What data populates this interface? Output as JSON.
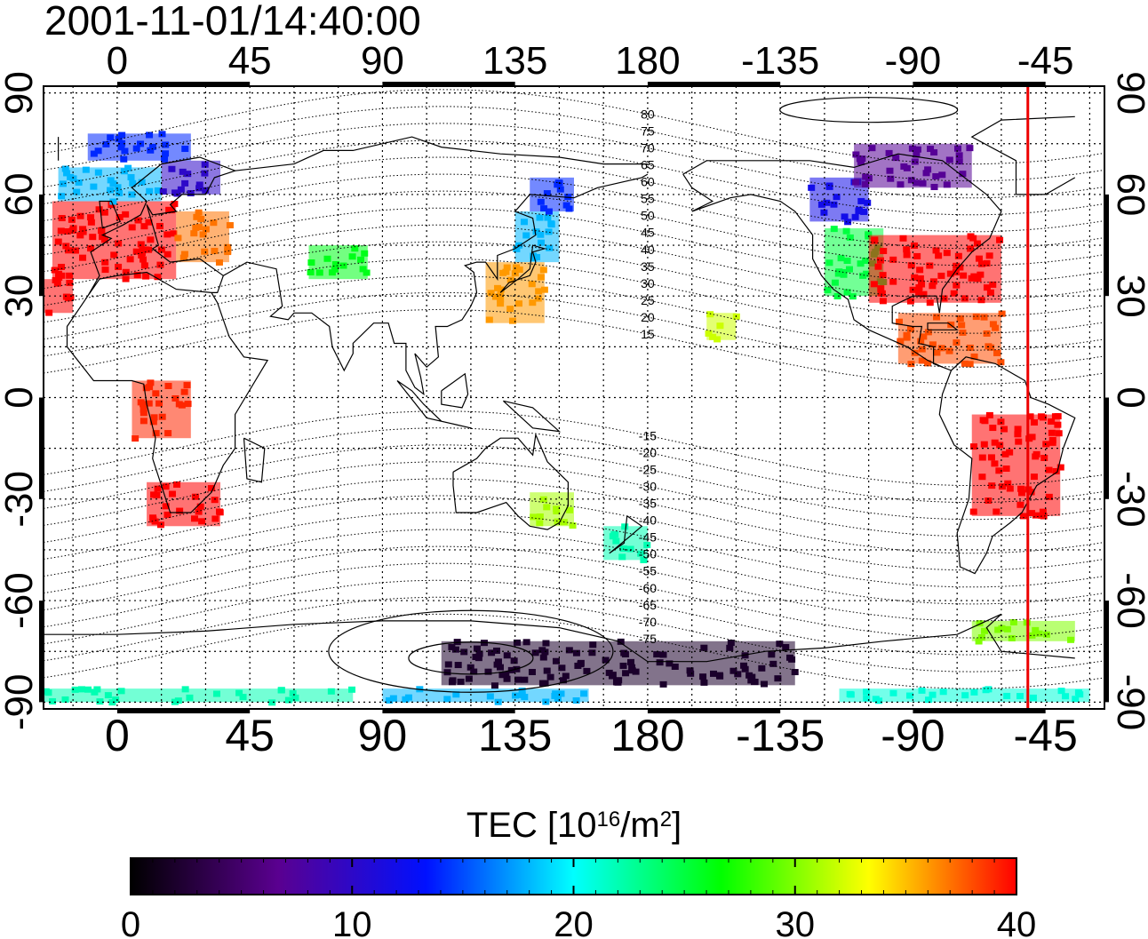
{
  "title": "2001-11-01/14:40:00",
  "map": {
    "lon_axis_ticks": [
      "0",
      "45",
      "90",
      "135",
      "180",
      "-135",
      "-90",
      "-45"
    ],
    "lat_axis_ticks": [
      "90",
      "60",
      "30",
      "0",
      "-30",
      "-60",
      "-90"
    ],
    "lon_tick_values": [
      0,
      45,
      90,
      135,
      180,
      225,
      270,
      315
    ],
    "lat_tick_values": [
      90,
      60,
      30,
      0,
      -30,
      -60,
      -90
    ],
    "lon_range": [
      -25,
      335
    ],
    "lat_range": [
      -92,
      92
    ],
    "projection": "cylindrical equidistant",
    "grid": true,
    "graticule_step_deg": 15,
    "terminator_longitude": 309,
    "terminator_color": "#ee0000",
    "magnetic_latitude_labels_north": [
      "80",
      "75",
      "70",
      "65",
      "60",
      "55",
      "50",
      "45",
      "40",
      "35",
      "30",
      "25",
      "20",
      "15"
    ],
    "magnetic_latitude_labels_south": [
      "-15",
      "-20",
      "-25",
      "-30",
      "-35",
      "-40",
      "-45",
      "-50",
      "-55",
      "-60",
      "-65",
      "-70",
      "-75"
    ]
  },
  "colorbar": {
    "label_prefix": "TEC  [10",
    "label_exp1": "16",
    "label_mid": "/m",
    "label_exp2": "2",
    "label_suffix": "]",
    "ticks": [
      "0",
      "10",
      "20",
      "30",
      "40"
    ],
    "range": [
      0,
      40
    ],
    "colors": [
      "#000000",
      "#5a0090",
      "#0010ff",
      "#00ffff",
      "#00ff00",
      "#ffff00",
      "#ff0000"
    ]
  },
  "chart_data": {
    "type": "heatmap",
    "variable": "TEC",
    "units": "10^16/m^2",
    "cells": [
      {
        "lon_range": [
          -22,
          20
        ],
        "lat_range": [
          35,
          58
        ],
        "tec": 40
      },
      {
        "lon_range": [
          20,
          38
        ],
        "lat_range": [
          40,
          55
        ],
        "tec": 37
      },
      {
        "lon_range": [
          -20,
          15
        ],
        "lat_range": [
          58,
          68
        ],
        "tec": 18
      },
      {
        "lon_range": [
          15,
          35
        ],
        "lat_range": [
          60,
          70
        ],
        "tec": 10
      },
      {
        "lon_range": [
          -10,
          25
        ],
        "lat_range": [
          70,
          78
        ],
        "tec": 14
      },
      {
        "lon_range": [
          -25,
          -15
        ],
        "lat_range": [
          25,
          35
        ],
        "tec": 40
      },
      {
        "lon_range": [
          65,
          85
        ],
        "lat_range": [
          35,
          45
        ],
        "tec": 26
      },
      {
        "lon_range": [
          125,
          145
        ],
        "lat_range": [
          22,
          40
        ],
        "tec": 36
      },
      {
        "lon_range": [
          135,
          150
        ],
        "lat_range": [
          40,
          55
        ],
        "tec": 18
      },
      {
        "lon_range": [
          140,
          155
        ],
        "lat_range": [
          55,
          65
        ],
        "tec": 14
      },
      {
        "lon_range": [
          240,
          260
        ],
        "lat_range": [
          30,
          50
        ],
        "tec": 25
      },
      {
        "lon_range": [
          255,
          300
        ],
        "lat_range": [
          28,
          48
        ],
        "tec": 40
      },
      {
        "lon_range": [
          235,
          255
        ],
        "lat_range": [
          52,
          65
        ],
        "tec": 12
      },
      {
        "lon_range": [
          250,
          290
        ],
        "lat_range": [
          62,
          75
        ],
        "tec": 7
      },
      {
        "lon_range": [
          265,
          300
        ],
        "lat_range": [
          10,
          25
        ],
        "tec": 38
      },
      {
        "lon_range": [
          290,
          320
        ],
        "lat_range": [
          -35,
          -5
        ],
        "tec": 40
      },
      {
        "lon_range": [
          10,
          35
        ],
        "lat_range": [
          -38,
          -25
        ],
        "tec": 40
      },
      {
        "lon_range": [
          5,
          25
        ],
        "lat_range": [
          -12,
          5
        ],
        "tec": 39
      },
      {
        "lon_range": [
          140,
          155
        ],
        "lat_range": [
          -38,
          -28
        ],
        "tec": 31
      },
      {
        "lon_range": [
          165,
          180
        ],
        "lat_range": [
          -48,
          -38
        ],
        "tec": 22
      },
      {
        "lon_range": [
          200,
          210
        ],
        "lat_range": [
          17,
          25
        ],
        "tec": 32
      },
      {
        "lon_range": [
          110,
          230
        ],
        "lat_range": [
          -85,
          -72
        ],
        "tec": 2
      },
      {
        "lon_range": [
          -25,
          80
        ],
        "lat_range": [
          -90,
          -86
        ],
        "tec": 22
      },
      {
        "lon_range": [
          90,
          160
        ],
        "lat_range": [
          -90,
          -86
        ],
        "tec": 18
      },
      {
        "lon_range": [
          245,
          330
        ],
        "lat_range": [
          -90,
          -86
        ],
        "tec": 21
      },
      {
        "lon_range": [
          290,
          325
        ],
        "lat_range": [
          -72,
          -66
        ],
        "tec": 30
      }
    ]
  }
}
